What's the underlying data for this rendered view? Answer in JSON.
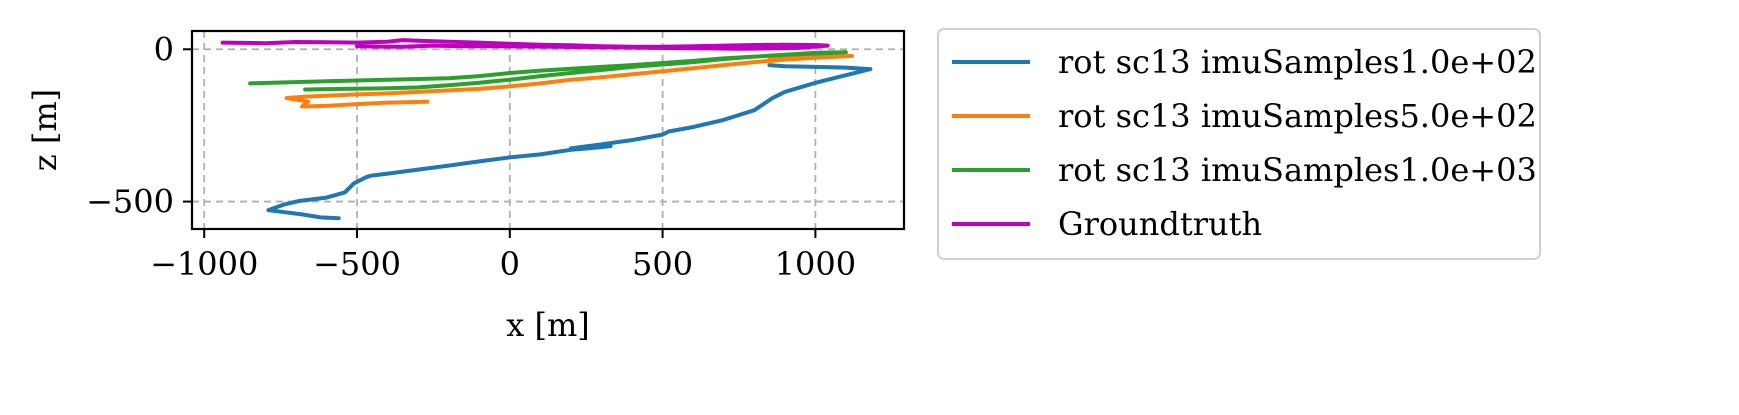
{
  "chart_data": {
    "type": "line",
    "title": "",
    "xlabel": "x [m]",
    "ylabel": "z [m]",
    "xlim": [
      -1040,
      1290
    ],
    "ylim": [
      -590,
      60
    ],
    "xticks": [
      -1000,
      -500,
      0,
      500,
      1000
    ],
    "xtick_labels": [
      "−1000",
      "−500",
      "0",
      "500",
      "1000"
    ],
    "yticks": [
      0,
      -500
    ],
    "ytick_labels": [
      "0",
      "−500"
    ],
    "grid": true,
    "legend_position": "outside-right",
    "series": [
      {
        "name": "rot sc13 imuSamples1.0e+02",
        "color": "#1f77b4",
        "points": [
          [
            -560,
            -555
          ],
          [
            -620,
            -552
          ],
          [
            -680,
            -542
          ],
          [
            -760,
            -532
          ],
          [
            -790,
            -528
          ],
          [
            -740,
            -510
          ],
          [
            -690,
            -498
          ],
          [
            -600,
            -487
          ],
          [
            -540,
            -470
          ],
          [
            -510,
            -440
          ],
          [
            -470,
            -420
          ],
          [
            -455,
            -415
          ],
          [
            -400,
            -408
          ],
          [
            -300,
            -395
          ],
          [
            -200,
            -382
          ],
          [
            -100,
            -368
          ],
          [
            0,
            -355
          ],
          [
            100,
            -345
          ],
          [
            200,
            -330
          ],
          [
            260,
            -325
          ],
          [
            330,
            -318
          ],
          [
            200,
            -325
          ],
          [
            300,
            -312
          ],
          [
            400,
            -298
          ],
          [
            500,
            -280
          ],
          [
            520,
            -270
          ],
          [
            600,
            -255
          ],
          [
            700,
            -232
          ],
          [
            800,
            -200
          ],
          [
            860,
            -160
          ],
          [
            900,
            -140
          ],
          [
            1000,
            -110
          ],
          [
            1100,
            -85
          ],
          [
            1180,
            -65
          ],
          [
            1100,
            -60
          ],
          [
            1000,
            -58
          ],
          [
            900,
            -56
          ],
          [
            850,
            -52
          ]
        ]
      },
      {
        "name": "rot sc13 imuSamples5.0e+02",
        "color": "#ff7f0e",
        "points": [
          [
            -270,
            -172
          ],
          [
            -400,
            -175
          ],
          [
            -500,
            -180
          ],
          [
            -600,
            -186
          ],
          [
            -680,
            -188
          ],
          [
            -660,
            -172
          ],
          [
            -730,
            -160
          ],
          [
            -660,
            -155
          ],
          [
            -500,
            -148
          ],
          [
            -400,
            -145
          ],
          [
            -300,
            -140
          ],
          [
            -200,
            -135
          ],
          [
            -100,
            -130
          ],
          [
            0,
            -122
          ],
          [
            100,
            -112
          ],
          [
            200,
            -100
          ],
          [
            300,
            -92
          ],
          [
            400,
            -82
          ],
          [
            500,
            -72
          ],
          [
            600,
            -62
          ],
          [
            700,
            -52
          ],
          [
            800,
            -42
          ],
          [
            900,
            -34
          ],
          [
            1000,
            -28
          ],
          [
            1120,
            -22
          ],
          [
            1000,
            -25
          ],
          [
            850,
            -30
          ]
        ]
      },
      {
        "name": "rot sc13 imuSamples1.0e+03",
        "color": "#2ca02c",
        "points": [
          [
            -670,
            -132
          ],
          [
            -550,
            -130
          ],
          [
            -400,
            -128
          ],
          [
            -300,
            -125
          ],
          [
            -200,
            -118
          ],
          [
            -100,
            -110
          ],
          [
            0,
            -100
          ],
          [
            100,
            -88
          ],
          [
            200,
            -78
          ],
          [
            300,
            -68
          ],
          [
            400,
            -58
          ],
          [
            500,
            -50
          ],
          [
            600,
            -42
          ],
          [
            700,
            -32
          ],
          [
            800,
            -24
          ],
          [
            900,
            -18
          ],
          [
            1000,
            -12
          ],
          [
            1100,
            -10
          ],
          [
            1000,
            -14
          ],
          [
            900,
            -18
          ],
          [
            800,
            -24
          ],
          [
            700,
            -30
          ],
          [
            600,
            -38
          ],
          [
            500,
            -45
          ],
          [
            400,
            -52
          ],
          [
            300,
            -58
          ],
          [
            200,
            -64
          ],
          [
            100,
            -70
          ],
          [
            0,
            -78
          ],
          [
            -100,
            -88
          ],
          [
            -200,
            -95
          ],
          [
            -400,
            -100
          ],
          [
            -600,
            -105
          ],
          [
            -850,
            -112
          ]
        ]
      },
      {
        "name": "Groundtruth",
        "color": "#bf00bf",
        "points": [
          [
            -940,
            22
          ],
          [
            -800,
            20
          ],
          [
            -700,
            24
          ],
          [
            -600,
            23
          ],
          [
            -500,
            22
          ],
          [
            -400,
            25
          ],
          [
            -350,
            30
          ],
          [
            -300,
            28
          ],
          [
            -200,
            25
          ],
          [
            -100,
            22
          ],
          [
            0,
            18
          ],
          [
            100,
            15
          ],
          [
            200,
            13
          ],
          [
            300,
            10
          ],
          [
            400,
            8
          ],
          [
            500,
            8
          ],
          [
            600,
            10
          ],
          [
            700,
            12
          ],
          [
            800,
            14
          ],
          [
            900,
            15
          ],
          [
            1000,
            14
          ],
          [
            1040,
            12
          ],
          [
            950,
            5
          ],
          [
            850,
            3
          ],
          [
            750,
            2
          ],
          [
            650,
            3
          ],
          [
            550,
            4
          ],
          [
            450,
            5
          ],
          [
            350,
            6
          ],
          [
            250,
            7
          ],
          [
            150,
            8
          ],
          [
            50,
            9
          ],
          [
            -50,
            10
          ],
          [
            -150,
            10
          ],
          [
            -250,
            12
          ],
          [
            -350,
            8
          ],
          [
            -450,
            9
          ],
          [
            -500,
            10
          ]
        ]
      }
    ]
  }
}
